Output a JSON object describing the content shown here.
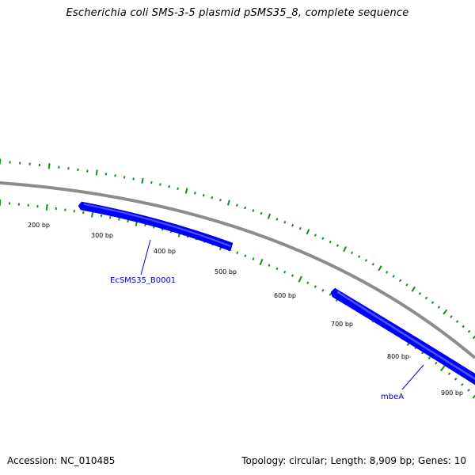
{
  "title": "Escherichia coli SMS-3-5 plasmid pSMS35_8, complete sequence",
  "footer": {
    "accession": "Accession: NC_010485",
    "summary": "Topology: circular; Length: 8,909 bp; Genes: 10"
  },
  "colors": {
    "backbone": "#8c8c8c",
    "gene": "#0000ff",
    "gene_highlight": "#4f4fff",
    "tick": "#1a8a1a",
    "gene_label": "#0000cc"
  },
  "scale_labels": [
    "200 bp",
    "300 bp",
    "400 bp",
    "500 bp",
    "600 bp",
    "700 bp",
    "800 bp",
    "900 bp"
  ],
  "genes": [
    {
      "name": "EcSMS35_B0001"
    },
    {
      "name": "mbeA"
    }
  ]
}
